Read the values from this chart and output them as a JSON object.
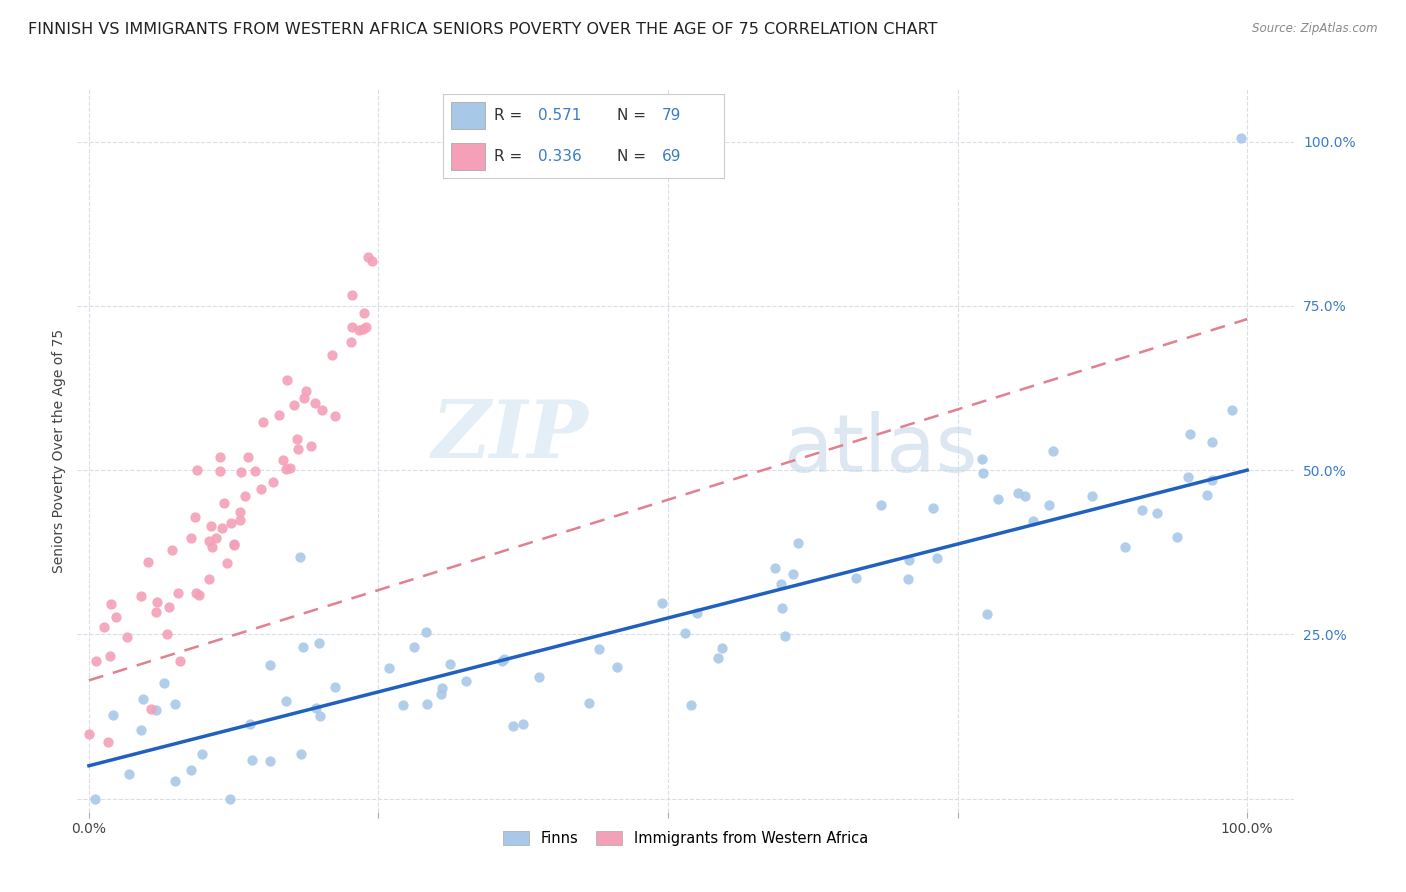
{
  "title": "FINNISH VS IMMIGRANTS FROM WESTERN AFRICA SENIORS POVERTY OVER THE AGE OF 75 CORRELATION CHART",
  "source": "Source: ZipAtlas.com",
  "ylabel": "Seniors Poverty Over the Age of 75",
  "finns_R": 0.571,
  "finns_N": 79,
  "immigrants_R": 0.336,
  "immigrants_N": 69,
  "finns_color": "#a8c8e8",
  "immigrants_color": "#f4a0b8",
  "finns_line_color": "#2060c0",
  "immigrants_line_color": "#e08090",
  "legend_finn_label": "Finns",
  "legend_immigrant_label": "Immigrants from Western Africa",
  "watermark_zip": "ZIP",
  "watermark_atlas": "atlas",
  "background_color": "#ffffff",
  "grid_color": "#d8dde8",
  "title_fontsize": 11.5,
  "axis_fontsize": 10,
  "tick_fontsize": 10,
  "ytick_color": "#3a7cc9",
  "finns_line_intercept": 0.05,
  "finns_line_slope": 0.45,
  "immigrants_line_intercept": 0.18,
  "immigrants_line_slope": 0.55
}
